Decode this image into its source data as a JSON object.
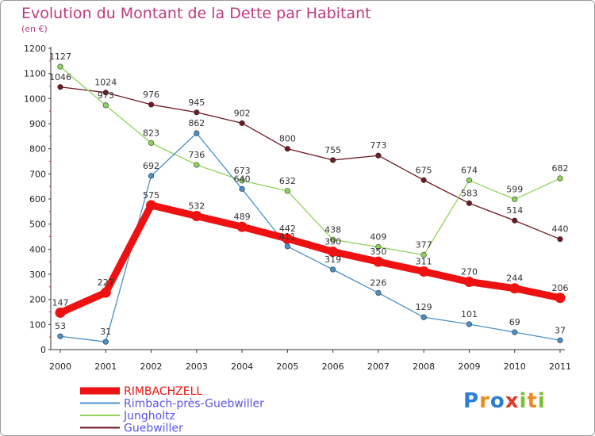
{
  "title": "Evolution du Montant de la Dette par Habitant",
  "subtitle": "(en €)",
  "brand": {
    "letters": [
      "P",
      "r",
      "o",
      "x",
      "i",
      "t",
      "i"
    ],
    "colors": [
      "#2a7fd4",
      "#f08a1c",
      "#2a7fd4",
      "#e23a2a",
      "#7bbd2e",
      "#f08a1c",
      "#7bbd2e"
    ]
  },
  "chart_data": {
    "type": "line",
    "x": [
      "2000",
      "2001",
      "2002",
      "2003",
      "2004",
      "2005",
      "2006",
      "2007",
      "2008",
      "2009",
      "2010",
      "2011"
    ],
    "ylim": [
      0,
      1200
    ],
    "yticks": [
      0,
      100,
      200,
      300,
      400,
      500,
      600,
      700,
      800,
      900,
      1000,
      1100,
      1200
    ],
    "grid": false,
    "legend": "bottom-left",
    "series": [
      {
        "name": "Guebwiller",
        "color": "#6e1a22",
        "values": [
          1046,
          1024,
          976,
          945,
          902,
          800,
          755,
          773,
          675,
          583,
          514,
          440
        ]
      },
      {
        "name": "Jungholtz",
        "color": "#8fd45a",
        "values": [
          1127,
          973,
          823,
          736,
          673,
          632,
          438,
          409,
          377,
          674,
          599,
          682
        ]
      },
      {
        "name": "Rimbach-près-Guebwiller",
        "color": "#4a90c8",
        "values": [
          53,
          31,
          692,
          862,
          640,
          411,
          319,
          226,
          129,
          101,
          69,
          37
        ]
      },
      {
        "name": "RIMBACHZELL",
        "color": "#ee1111",
        "values": [
          147,
          227,
          575,
          532,
          489,
          442,
          390,
          350,
          311,
          270,
          244,
          206
        ]
      }
    ],
    "legend_order": [
      "RIMBACHZELL",
      "Rimbach-près-Guebwiller",
      "Jungholtz",
      "Guebwiller"
    ],
    "legend_colors": [
      "#ee1111",
      "#4a90c8",
      "#8fd45a",
      "#6e1a22"
    ],
    "legend_text_colors": [
      "#ee1111",
      "#5555ee",
      "#5555ee",
      "#5555ee"
    ]
  }
}
